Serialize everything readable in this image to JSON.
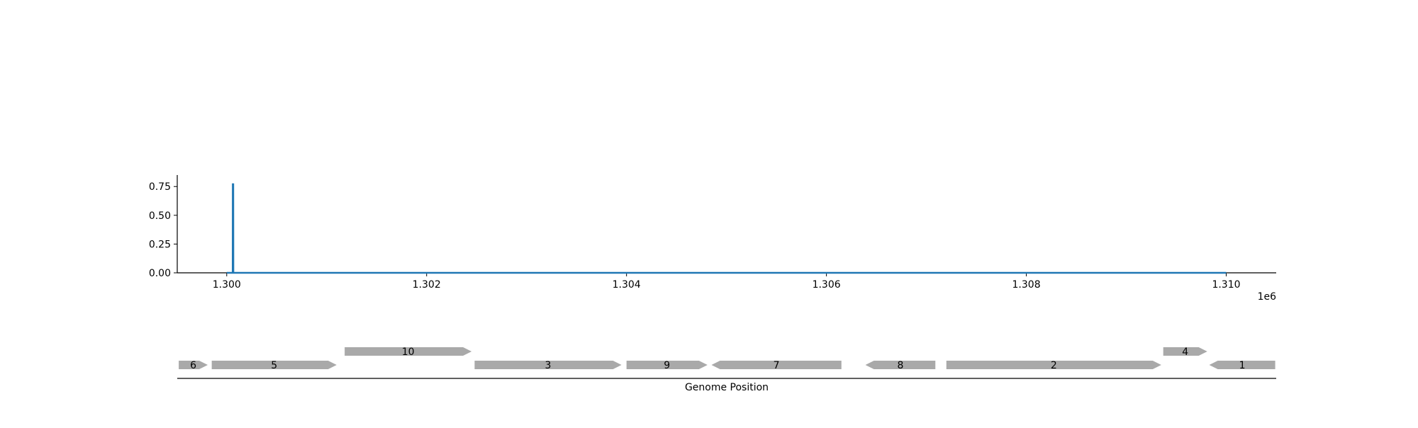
{
  "chart_data": [
    {
      "type": "line",
      "title": "",
      "xlabel": "",
      "ylabel": "",
      "x_offset_label": "1e6",
      "xlim": [
        1299505,
        1310500
      ],
      "ylim": [
        0,
        0.85
      ],
      "xticks": [
        1300000,
        1302000,
        1304000,
        1306000,
        1308000,
        1310000
      ],
      "xtick_labels": [
        "1.300",
        "1.302",
        "1.304",
        "1.306",
        "1.308",
        "1.310"
      ],
      "yticks": [
        0,
        0.25,
        0.5,
        0.75
      ],
      "ytick_labels": [
        "0.00",
        "0.25",
        "0.50",
        "0.75"
      ],
      "grid": false,
      "line_color": "#1f77b4",
      "series": [
        {
          "x": [
            1300000,
            1300060,
            1300061,
            1300065,
            1300066,
            1310000
          ],
          "y": [
            0,
            0,
            0.77,
            0.77,
            0,
            0
          ]
        }
      ]
    },
    {
      "type": "gene_track",
      "xlabel": "Genome Position",
      "xlim": [
        1299505,
        1310500
      ],
      "feature_color": "#a9a9a9",
      "genes": [
        {
          "label": "6",
          "start": 1299520,
          "end": 1299810,
          "strand": "+",
          "row": 0
        },
        {
          "label": "5",
          "start": 1299850,
          "end": 1301100,
          "strand": "+",
          "row": 0
        },
        {
          "label": "10",
          "start": 1301180,
          "end": 1302450,
          "strand": "+",
          "row": 1
        },
        {
          "label": "3",
          "start": 1302480,
          "end": 1303950,
          "strand": "+",
          "row": 0
        },
        {
          "label": "9",
          "start": 1304000,
          "end": 1304810,
          "strand": "+",
          "row": 0
        },
        {
          "label": "7",
          "start": 1304850,
          "end": 1306150,
          "strand": "-",
          "row": 0
        },
        {
          "label": "8",
          "start": 1306390,
          "end": 1307090,
          "strand": "-",
          "row": 0
        },
        {
          "label": "2",
          "start": 1307200,
          "end": 1309350,
          "strand": "+",
          "row": 0
        },
        {
          "label": "4",
          "start": 1309370,
          "end": 1309810,
          "strand": "+",
          "row": 1
        },
        {
          "label": "1",
          "start": 1309830,
          "end": 1310490,
          "strand": "-",
          "row": 0
        }
      ]
    }
  ]
}
